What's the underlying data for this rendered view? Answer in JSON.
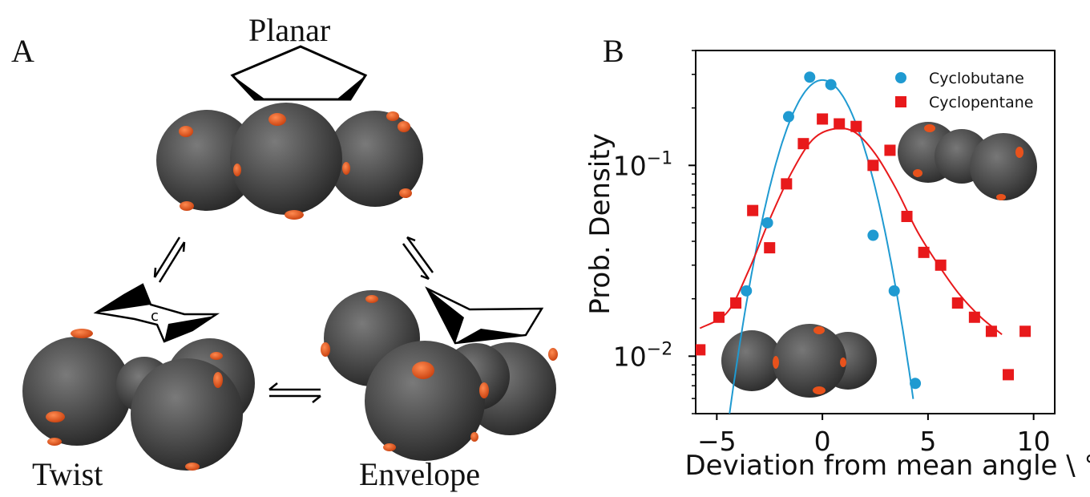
{
  "panel_a": {
    "letter": "A",
    "labels": {
      "planar": "Planar",
      "twist": "Twist",
      "envelope": "Envelope"
    },
    "twist_glyph": "c"
  },
  "panel_b": {
    "letter": "B"
  },
  "colors": {
    "sphere": "#4a4a4a",
    "patch": "#e8521c",
    "cyclobutane": "#1f9ad1",
    "cyclopentane": "#e8191b"
  },
  "chart_data": {
    "type": "scatter",
    "title": "",
    "xlabel": "Deviation from mean angle \\ °",
    "ylabel": "Prob. Density",
    "xlim": [
      -6,
      11
    ],
    "ylim": [
      0.005,
      0.4
    ],
    "yscale": "log",
    "xticks": [
      -5,
      0,
      5,
      10
    ],
    "xtick_labels": [
      "−5",
      "0",
      "5",
      "10"
    ],
    "yticks": [
      0.01,
      0.1
    ],
    "ytick_labels": [
      [
        "10",
        "−2"
      ],
      [
        "10",
        "−1"
      ]
    ],
    "legend_position": "top-right",
    "series": [
      {
        "name": "Cyclobutane",
        "marker": "circle",
        "color": "#1f9ad1",
        "points": [
          [
            -3.6,
            0.022
          ],
          [
            -2.6,
            0.05
          ],
          [
            -1.6,
            0.18
          ],
          [
            -0.6,
            0.29
          ],
          [
            0.4,
            0.265
          ],
          [
            2.4,
            0.043
          ],
          [
            3.4,
            0.022
          ],
          [
            4.4,
            0.0072
          ]
        ],
        "fit": {
          "mu": 0,
          "sigma": 1.55,
          "peak": 0.28,
          "xrange": [
            -4.55,
            4.3
          ]
        }
      },
      {
        "name": "Cyclopentane",
        "marker": "square",
        "color": "#e8191b",
        "points": [
          [
            -5.8,
            0.0108
          ],
          [
            -4.9,
            0.016
          ],
          [
            -4.1,
            0.019
          ],
          [
            -3.3,
            0.058
          ],
          [
            -2.5,
            0.037
          ],
          [
            -1.7,
            0.08
          ],
          [
            -0.9,
            0.13
          ],
          [
            0.0,
            0.175
          ],
          [
            0.8,
            0.165
          ],
          [
            1.6,
            0.16
          ],
          [
            2.4,
            0.1
          ],
          [
            3.2,
            0.12
          ],
          [
            4.0,
            0.054
          ],
          [
            4.8,
            0.035
          ],
          [
            5.6,
            0.03
          ],
          [
            6.4,
            0.019
          ],
          [
            7.2,
            0.016
          ],
          [
            8.0,
            0.0135
          ],
          [
            8.8,
            0.008
          ],
          [
            9.6,
            0.0135
          ]
        ],
        "fit": [
          [
            -5.8,
            0.014
          ],
          [
            -4.5,
            0.017
          ],
          [
            -3.5,
            0.028
          ],
          [
            -2.5,
            0.052
          ],
          [
            -1.5,
            0.09
          ],
          [
            -0.5,
            0.135
          ],
          [
            0.5,
            0.155
          ],
          [
            1.5,
            0.15
          ],
          [
            2.5,
            0.115
          ],
          [
            3.5,
            0.075
          ],
          [
            4.5,
            0.045
          ],
          [
            5.5,
            0.03
          ],
          [
            6.5,
            0.021
          ],
          [
            7.5,
            0.016
          ],
          [
            8.5,
            0.013
          ]
        ]
      }
    ]
  }
}
